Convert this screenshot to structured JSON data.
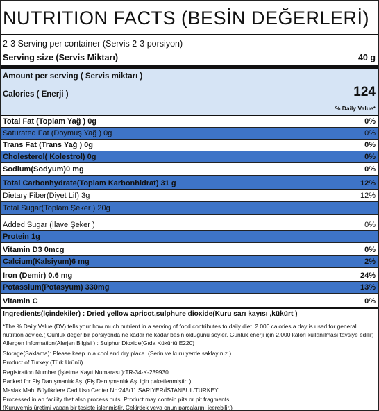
{
  "title": "NUTRITION FACTS (BESİN DEĞERLERİ)",
  "servings_per_container": "2-3 Serving per container (Servis 2-3 porsiyon)",
  "serving_size": {
    "label": "Serving size (Servis Miktarı)",
    "value": "40 g"
  },
  "amount_per_serving": "Amount  per serving   ( Servis miktarı )",
  "calories": {
    "label": "Calories ( Enerji )",
    "value": "124"
  },
  "daily_value_header": "% Daily Value*",
  "nutrients": [
    {
      "label": "Total Fat (Toplam Yağ ) 0g",
      "value": "0%"
    },
    {
      "label": "Saturated Fat (Doymuş Yağ )  0g",
      "value": "0%"
    },
    {
      "label": "Trans Fat (Trans Yağ ) 0g",
      "value": "0%"
    },
    {
      "label": "Cholesterol( Kolestrol) 0g",
      "value": "0%"
    },
    {
      "label": "Sodium(Sodyum)0 mg",
      "value": "0%"
    },
    {
      "label": "Total Carbonhydrate(Toplam Karbonhidrat) 31 g",
      "value": "12%"
    },
    {
      "label": "Dietary Fiber(Diyet Lif) 3g",
      "value": "12%"
    },
    {
      "label": "Total Sugar(Toplam Şeker )     20g",
      "value": ""
    },
    {
      "label": "Added Sugar (İlave Şeker )",
      "value": "0%"
    },
    {
      "label": "Protein 1g",
      "value": ""
    },
    {
      "label": "Vitamin D3 0mcg",
      "value": "0%"
    },
    {
      "label": "Calcium(Kalsiyum)6 mg",
      "value": "2%"
    },
    {
      "label": "Iron (Demir) 0.6 mg",
      "value": "24%"
    },
    {
      "label": "Potassium(Potasyum)  330mg",
      "value": "13%"
    },
    {
      "label": "Vitamin C",
      "value": "0%"
    }
  ],
  "ingredients": "Ingredients(İçindekiler) : Dried yellow apricot,sulphure dioxide(Kuru sarı kayısı ,kükürt )",
  "footnotes": [
    "*The % Daily Value (DV)  tells your how much nutrient in a serving of food contributes to daily diet. 2.000 calories a day is used for general",
    "nutrition advice.( Günlük değer bir porsiyonda ne kadar ne kadar besin olduğunu söyler. Günlük enerji için 2.000 kalori kullanılması tavsiye edilir)",
    "Allergen Information(Alerjen Bilgisi ) : Sulphur Dioxide(Gıda Kükürtü E220)",
    "Storage(Saklama): Please keep in a cool and dry place. (Serin ve kuru yerde saklayınız.)",
    "Product of Turkey (Türk Ürünü)",
    "Registration Number (İşletme Kayıt Numarası ):TR-34-K-239930",
    "Packed for Fiş Danışmanlık Aş. (Fiş Danışmanlık Aş. için paketlenmiştir. )",
    "Maslak Mah. Büyükdere Cad.Uso Center No:245/11 SARIYER/İSTANBUL/TURKEY",
    "Processed in an facility that also process nuts. Product may contain pits or pit fragments.",
    "(Kuruyemiş üretimi yapan bir tesiste işlenmiştir. Çekirdek veya onun parçalarını içerebilir.)"
  ]
}
